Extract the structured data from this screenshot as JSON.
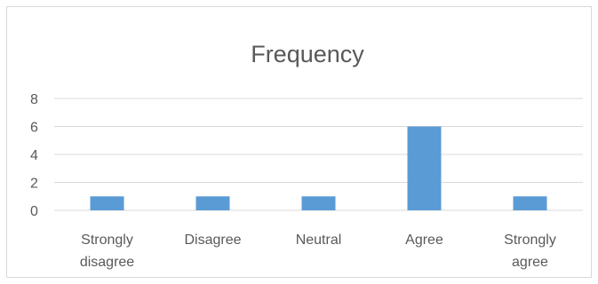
{
  "chart_data": {
    "type": "bar",
    "title": "Frequency",
    "categories": [
      "Strongly disagree",
      "Disagree",
      "Neutral",
      "Agree",
      "Strongly agree"
    ],
    "category_label_lines": [
      [
        "Strongly",
        "disagree"
      ],
      [
        "Disagree"
      ],
      [
        "Neutral"
      ],
      [
        "Agree"
      ],
      [
        "Strongly",
        "agree"
      ]
    ],
    "values": [
      1,
      1,
      1,
      6,
      1
    ],
    "ylim": [
      0,
      8
    ],
    "yticks": [
      0,
      2,
      4,
      6,
      8
    ],
    "grid": true,
    "legend": "none",
    "bar_color": "#5b9bd5",
    "xlabel": "",
    "ylabel": ""
  }
}
